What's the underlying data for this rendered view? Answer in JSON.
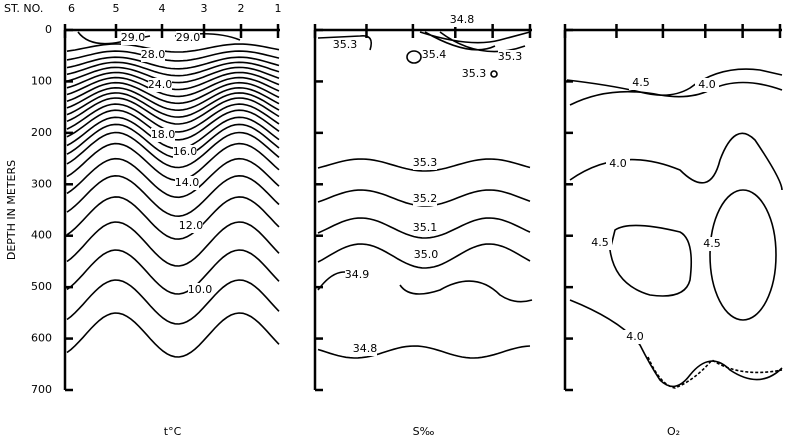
{
  "y_axis": {
    "label": "DEPTH IN METERS",
    "ticks": [
      "0",
      "100",
      "200",
      "300",
      "400",
      "500",
      "600",
      "700"
    ]
  },
  "stations": {
    "label": "ST. NO.",
    "numbers": [
      "6",
      "5",
      "4",
      "3",
      "2",
      "1"
    ]
  },
  "panels": [
    {
      "label": "t°C",
      "contour_labels": [
        "29.0",
        "29.0",
        "28.0",
        "24.0",
        "18.0",
        "16.0",
        "14.0",
        "12.0",
        "10.0"
      ]
    },
    {
      "label": "S‰",
      "contour_labels": [
        "34.8",
        "35.3",
        "35.4",
        "35.3",
        "35.3",
        "35.3",
        "35.2",
        "35.1",
        "35.0",
        "34.9",
        "34.8"
      ]
    },
    {
      "label": "O₂",
      "contour_labels": [
        "4.5",
        "4.0",
        "4.0",
        "4.5",
        "4.5",
        "4.0"
      ]
    }
  ]
}
